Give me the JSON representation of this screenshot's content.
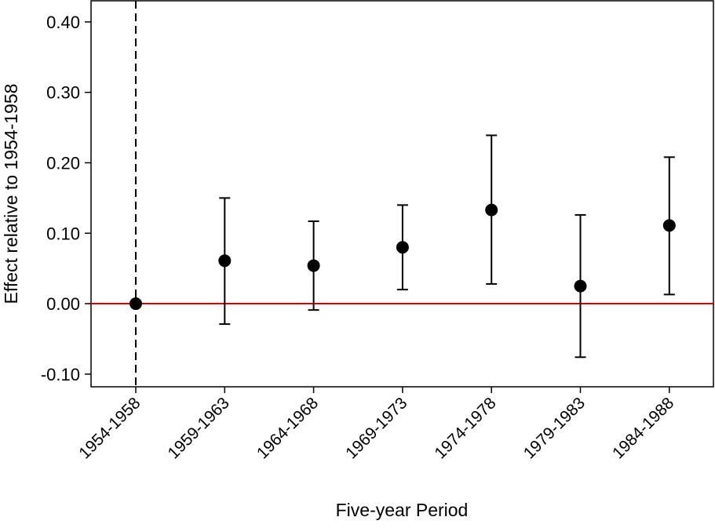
{
  "chart_data": {
    "type": "scatter",
    "subtype": "coefficient-plot-with-confidence-intervals",
    "title": "",
    "xlabel": "Five-year Period",
    "ylabel": "Effect relative to 1954-1958",
    "categories": [
      "1954-1958",
      "1959-1963",
      "1964-1968",
      "1969-1973",
      "1974-1978",
      "1979-1983",
      "1984-1988"
    ],
    "series": [
      {
        "estimates": [
          0.0,
          0.061,
          0.054,
          0.08,
          0.133,
          0.025,
          0.111
        ],
        "ci_lower": [
          null,
          -0.029,
          -0.009,
          0.02,
          0.028,
          -0.076,
          0.013
        ],
        "ci_upper": [
          null,
          0.15,
          0.117,
          0.14,
          0.239,
          0.126,
          0.208
        ]
      }
    ],
    "ylim": [
      -0.118,
      0.43
    ],
    "yticks": [
      -0.1,
      0.0,
      0.1,
      0.2,
      0.3,
      0.4
    ],
    "ytick_labels": [
      "-0.10",
      "0.00",
      "0.10",
      "0.20",
      "0.30",
      "0.40"
    ],
    "reference_hline": {
      "y": 0.0,
      "color": "#cc0000"
    },
    "reference_vline": {
      "category": "1954-1958",
      "style": "dashed"
    },
    "grid": false,
    "legend": "none",
    "colors": {
      "points": "#000000",
      "errorbars": "#000000",
      "zero_line": "#cc0000"
    }
  }
}
